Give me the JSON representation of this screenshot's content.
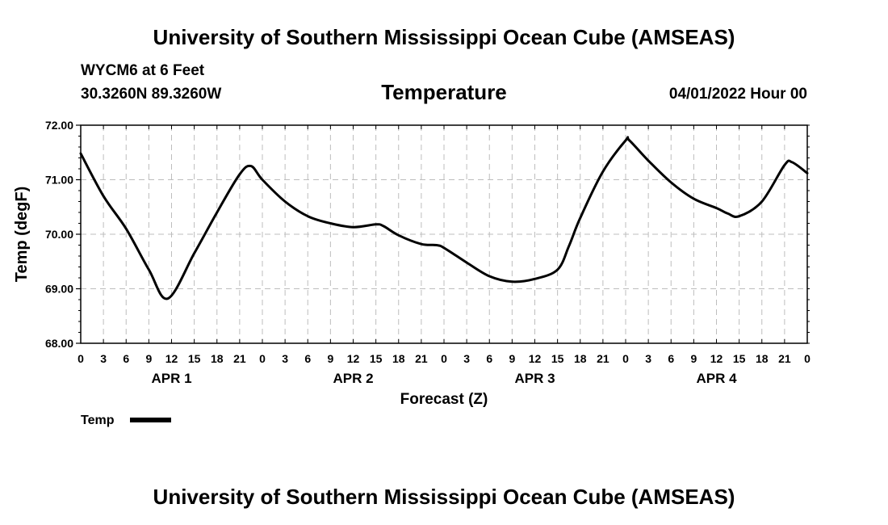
{
  "header": {
    "top_title": "University of Southern Mississippi Ocean Cube (AMSEAS)",
    "bottom_title": "University of Southern Mississippi Ocean Cube (AMSEAS)",
    "station_line": "WYCM6 at 6 Feet",
    "coords": "30.3260N  89.3260W",
    "run_time": "04/01/2022 Hour 00"
  },
  "chart_data": {
    "type": "line",
    "title": "Temperature",
    "xlabel": "Forecast (Z)",
    "ylabel": "Temp (degF)",
    "ylim": [
      68.0,
      72.0
    ],
    "xlim": [
      0,
      96
    ],
    "y_ticks": [
      "68.00",
      "69.00",
      "70.00",
      "71.00",
      "72.00"
    ],
    "x_tick_labels": [
      "0",
      "3",
      "6",
      "9",
      "12",
      "15",
      "18",
      "21",
      "0",
      "3",
      "6",
      "9",
      "12",
      "15",
      "18",
      "21",
      "0",
      "3",
      "6",
      "9",
      "12",
      "15",
      "18",
      "21",
      "0",
      "3",
      "6",
      "9",
      "12",
      "15",
      "18",
      "21",
      "0"
    ],
    "day_labels": [
      "APR 1",
      "APR 2",
      "APR 3",
      "APR 4"
    ],
    "grid": true,
    "legend": [
      {
        "name": "Temp",
        "position": "bottom-left"
      }
    ],
    "series": [
      {
        "name": "Temp",
        "x": [
          0,
          3,
          6,
          9,
          11.5,
          15,
          18,
          21,
          22.5,
          24,
          27,
          30,
          33,
          36,
          39,
          40,
          42,
          45,
          47,
          48,
          51,
          54,
          57,
          60,
          63,
          64.5,
          66,
          69,
          72,
          72.5,
          75,
          78,
          81,
          84,
          85.5,
          87,
          90,
          93,
          94,
          96
        ],
        "values": [
          71.48,
          70.7,
          70.1,
          69.35,
          68.82,
          69.65,
          70.4,
          71.1,
          71.25,
          71.0,
          70.6,
          70.33,
          70.2,
          70.13,
          70.18,
          70.15,
          69.98,
          69.82,
          69.8,
          69.75,
          69.48,
          69.23,
          69.13,
          69.18,
          69.35,
          69.78,
          70.3,
          71.15,
          71.72,
          71.72,
          71.35,
          70.95,
          70.65,
          70.48,
          70.38,
          70.33,
          70.6,
          71.27,
          71.32,
          71.12
        ]
      }
    ]
  }
}
